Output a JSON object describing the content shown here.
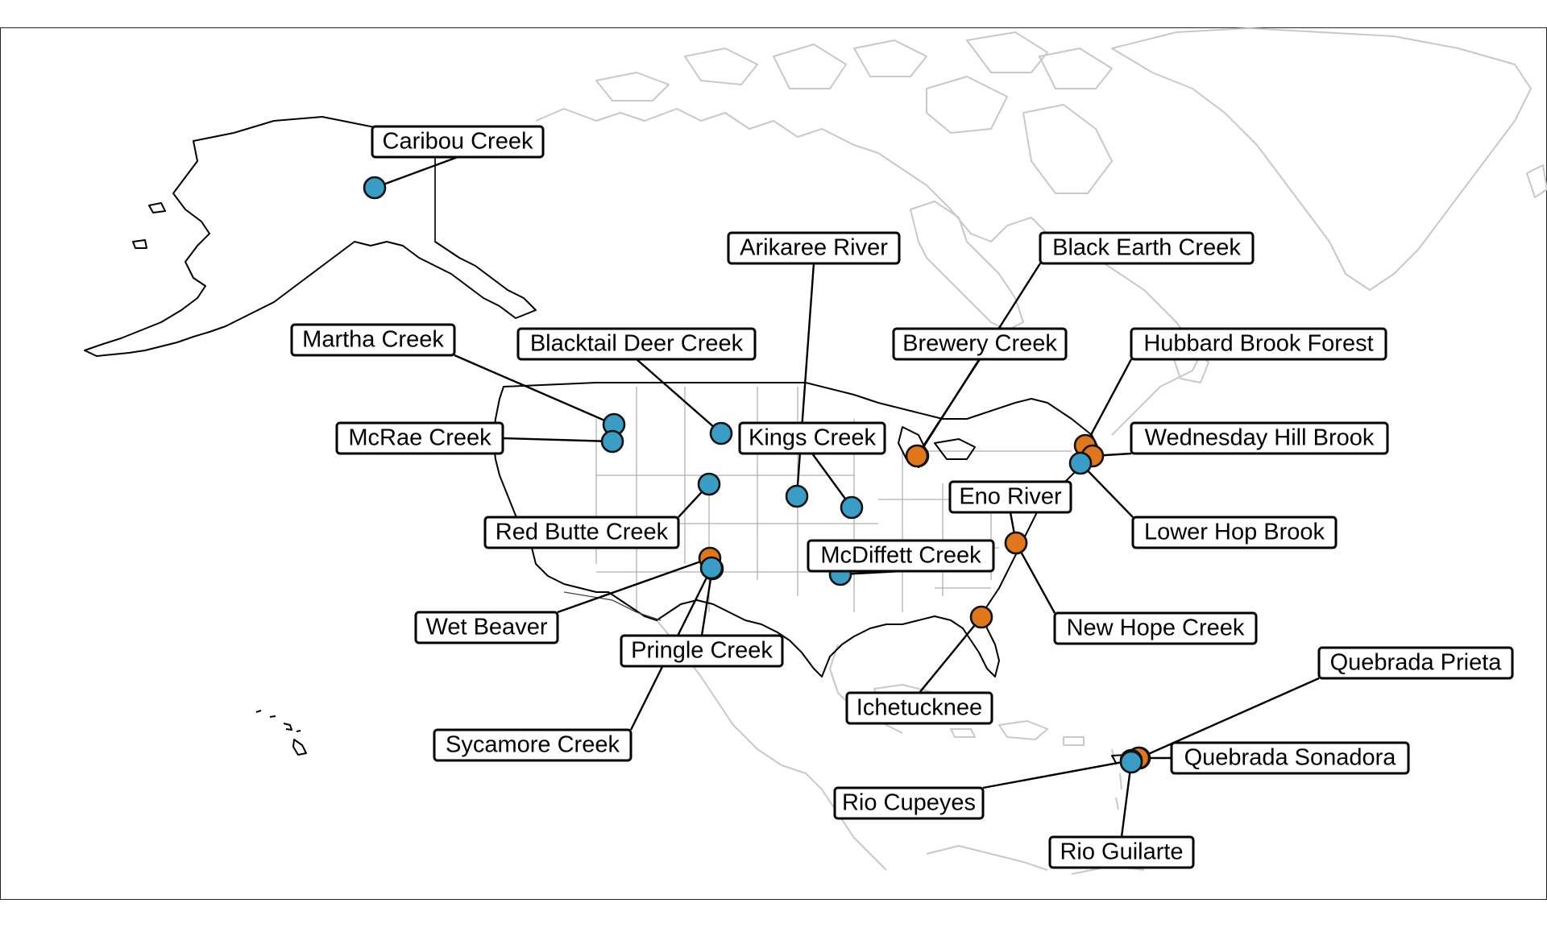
{
  "colors": {
    "blue_group": "#3a9dc6",
    "orange_group": "#e0771a",
    "coast_gray": "#c8c8c8",
    "coast_us": "#000000"
  },
  "sites": [
    {
      "name": "Caribou Creek",
      "group": "blue"
    },
    {
      "name": "Arikaree River",
      "group": "blue"
    },
    {
      "name": "Black Earth Creek",
      "group": "orange"
    },
    {
      "name": "Martha Creek",
      "group": "blue"
    },
    {
      "name": "Blacktail Deer Creek",
      "group": "blue"
    },
    {
      "name": "Brewery Creek",
      "group": "orange"
    },
    {
      "name": "Hubbard Brook Forest",
      "group": "orange"
    },
    {
      "name": "McRae Creek",
      "group": "blue"
    },
    {
      "name": "Kings Creek",
      "group": "blue"
    },
    {
      "name": "Wednesday Hill Brook",
      "group": "orange"
    },
    {
      "name": "Eno River",
      "group": "orange"
    },
    {
      "name": "Red Butte Creek",
      "group": "blue"
    },
    {
      "name": "Lower Hop Brook",
      "group": "blue"
    },
    {
      "name": "McDiffett Creek",
      "group": "blue"
    },
    {
      "name": "Wet Beaver",
      "group": "orange"
    },
    {
      "name": "New Hope Creek",
      "group": "orange"
    },
    {
      "name": "Pringle Creek",
      "group": "blue"
    },
    {
      "name": "Quebrada Prieta",
      "group": "orange"
    },
    {
      "name": "Ichetucknee",
      "group": "orange"
    },
    {
      "name": "Sycamore Creek",
      "group": "blue"
    },
    {
      "name": "Quebrada Sonadora",
      "group": "orange"
    },
    {
      "name": "Rio Cupeyes",
      "group": "blue"
    },
    {
      "name": "Rio Guilarte",
      "group": "blue"
    }
  ]
}
